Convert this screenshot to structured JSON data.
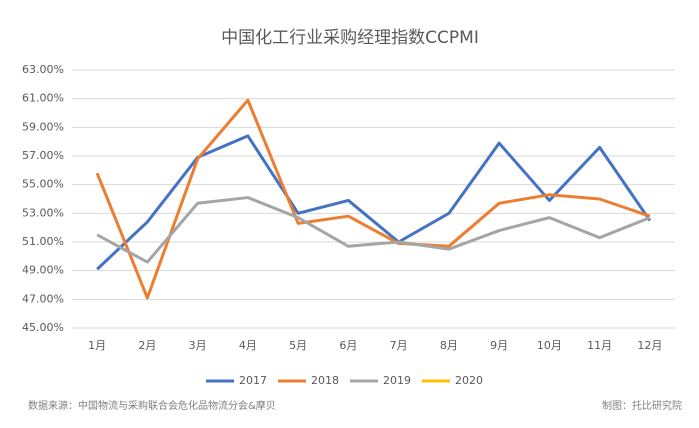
{
  "chart_data": {
    "type": "line",
    "title": "中国化工行业采购经理指数CCPMI",
    "categories": [
      "1月",
      "2月",
      "3月",
      "4月",
      "5月",
      "6月",
      "7月",
      "8月",
      "9月",
      "10月",
      "11月",
      "12月"
    ],
    "series": [
      {
        "name": "2017",
        "color": "#4472c4",
        "values": [
          49.1,
          52.4,
          56.9,
          58.4,
          53.0,
          53.9,
          51.0,
          53.0,
          57.9,
          53.9,
          57.6,
          52.5
        ]
      },
      {
        "name": "2018",
        "color": "#ed7d31",
        "values": [
          55.8,
          47.1,
          56.8,
          60.9,
          52.3,
          52.8,
          50.9,
          50.7,
          53.7,
          54.3,
          54.0,
          52.8
        ]
      },
      {
        "name": "2019",
        "color": "#a5a5a5",
        "values": [
          51.5,
          49.6,
          53.7,
          54.1,
          52.7,
          50.7,
          51.0,
          50.5,
          51.8,
          52.7,
          51.3,
          52.7
        ]
      },
      {
        "name": "2020",
        "color": "#ffc000",
        "values": [
          null,
          null,
          null,
          null,
          null,
          null,
          null,
          null,
          null,
          null,
          null,
          null
        ]
      }
    ],
    "ylim": [
      45,
      63
    ],
    "yticks": [
      {
        "value": 45,
        "label": "45.00%"
      },
      {
        "value": 47,
        "label": "47.00%"
      },
      {
        "value": 49,
        "label": "49.00%"
      },
      {
        "value": 51,
        "label": "51.00%"
      },
      {
        "value": 53,
        "label": "53.00%"
      },
      {
        "value": 55,
        "label": "55.00%"
      },
      {
        "value": 57,
        "label": "57.00%"
      },
      {
        "value": 59,
        "label": "59.00%"
      },
      {
        "value": 61,
        "label": "61.00%"
      },
      {
        "value": 63,
        "label": "63.00%"
      }
    ],
    "grid": true,
    "legend": "bottom",
    "source": "数据来源：中国物流与采购联合会危化品物流分会&摩贝",
    "credit": "制图：托比研究院"
  }
}
